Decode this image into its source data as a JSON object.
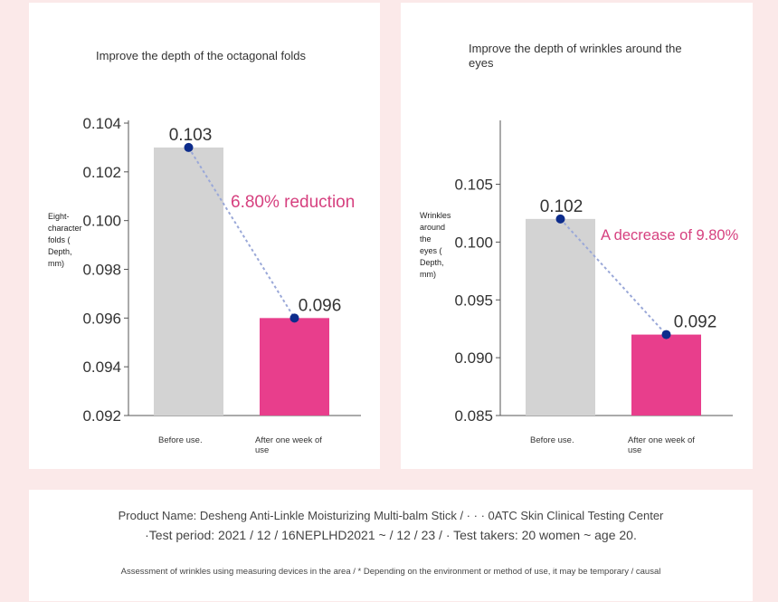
{
  "chart_data": [
    {
      "type": "bar",
      "title": "Improve the depth of the octagonal folds",
      "ylabel": "Eight-character folds ( Depth, mm)",
      "categories": [
        "Before use.",
        "After one week of use"
      ],
      "values": [
        0.103,
        0.096
      ],
      "ylim": [
        0.092,
        0.104
      ],
      "yticks": [
        0.104,
        0.102,
        0.1,
        0.098,
        0.096,
        0.094,
        0.092
      ],
      "ytick_labels": [
        "0.104",
        "0.102",
        "0.100",
        "0.098",
        "0.096",
        "0.094",
        "0.092"
      ],
      "data_labels": [
        "0.103",
        "0.096"
      ],
      "annotation": "6.80% reduction",
      "colors": [
        "#d3d3d3",
        "#e83e8c"
      ],
      "grid": false
    },
    {
      "type": "bar",
      "title": "Improve the depth of wrinkles around the eyes",
      "ylabel": "Wrinkles around the eyes ( Depth, mm)",
      "categories": [
        "Before use.",
        "After one week of use"
      ],
      "values": [
        0.102,
        0.092
      ],
      "ylim": [
        0.085,
        0.107
      ],
      "yticks": [
        0.105,
        0.1,
        0.095,
        0.09,
        0.085
      ],
      "ytick_labels": [
        "0.105",
        "0.100",
        "0.095",
        "0.090",
        "0.085"
      ],
      "data_labels": [
        "0.102",
        "0.092"
      ],
      "annotation": "A decrease of 9.80%",
      "colors": [
        "#d3d3d3",
        "#e83e8c"
      ],
      "grid": false
    }
  ],
  "footer": {
    "line1": "Product Name: Desheng Anti-Linkle Moisturizing Multi-balm Stick / · · · 0ATC Skin Clinical Testing Center",
    "line2": "·Test period: 2021 / 12 / 16NEPLHD2021 ~ / 12 / 23 / · Test takers: 20 women ~ age 20.",
    "line3": "Assessment of wrinkles using measuring devices in the area / * Depending on the environment or method of use, it may be temporary / causal"
  },
  "colors": {
    "background": "#fbe9e9",
    "bar_before": "#d3d3d3",
    "bar_after": "#e83e8c",
    "annotation": "#d6407f",
    "connector": "#9aa8d8",
    "marker": "#0d2c8c"
  }
}
